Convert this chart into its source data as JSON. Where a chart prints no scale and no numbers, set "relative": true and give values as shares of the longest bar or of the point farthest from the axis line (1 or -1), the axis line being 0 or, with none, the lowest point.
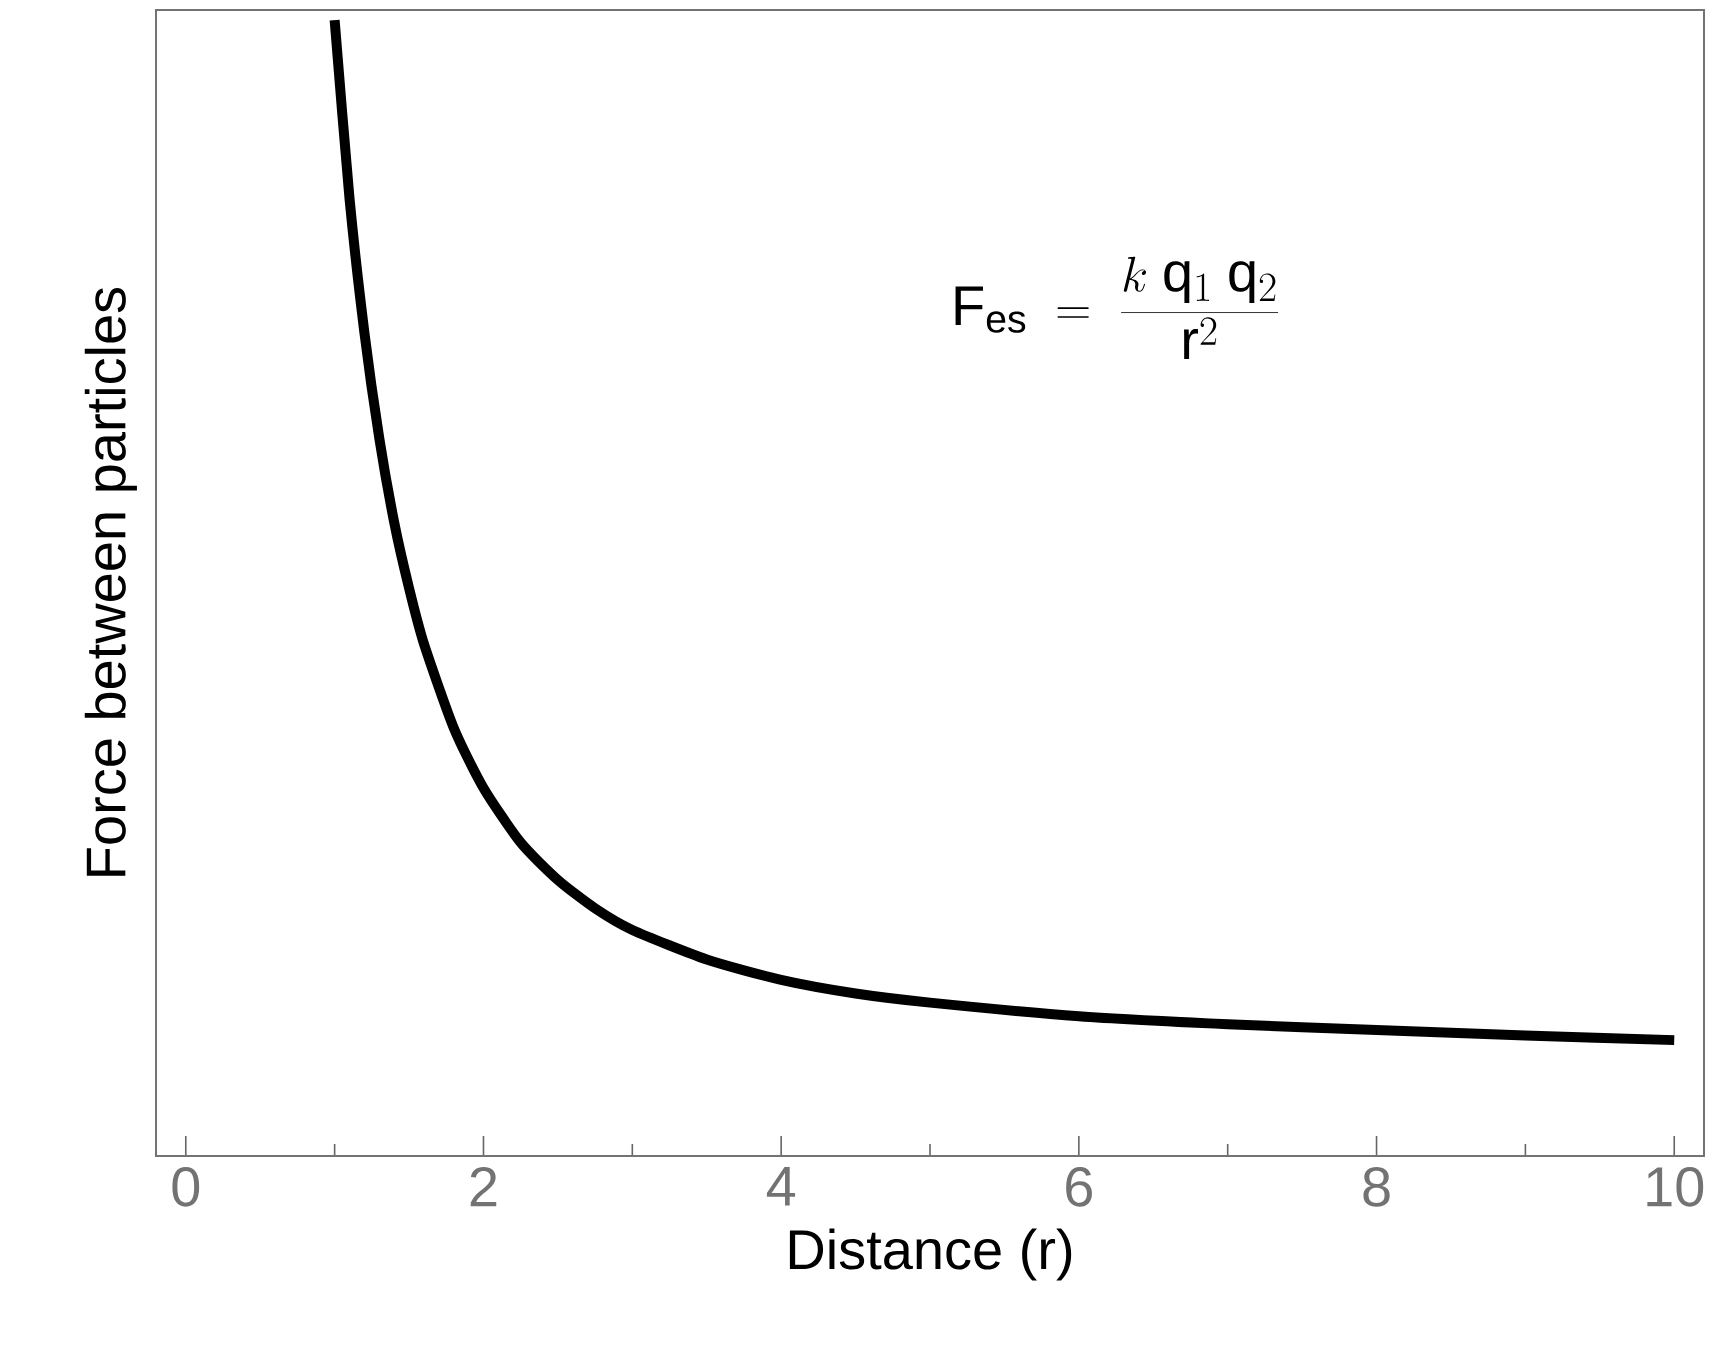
{
  "chart_data": {
    "type": "line",
    "relative": true,
    "xlabel": "Distance (r)",
    "ylabel": "Force between particles",
    "annotations": [
      "\\mathrm{F}_{\\mathrm{es}} \\;=\\; \\frac{k\\;\\mathrm{q}_1\\;\\mathrm{q}_2}{\\mathrm{r}^2}"
    ],
    "xlim": [
      -0.2,
      10.2
    ],
    "xticks": [
      0,
      2,
      4,
      6,
      8,
      10
    ],
    "grid": false,
    "marker": "none",
    "line_style": "solid",
    "series": [
      {
        "color": "#000000",
        "x": [
          1,
          1.1,
          1.2,
          1.3,
          1.4,
          1.5,
          1.6,
          1.8,
          2,
          2.25,
          2.5,
          2.75,
          3,
          3.5,
          4,
          4.5,
          5,
          6,
          7,
          8,
          9,
          10
        ],
        "values": [
          1,
          0.843,
          0.725,
          0.632,
          0.558,
          0.5,
          0.451,
          0.377,
          0.324,
          0.276,
          0.243,
          0.218,
          0.199,
          0.173,
          0.155,
          0.143,
          0.135,
          0.123,
          0.116,
          0.111,
          0.106,
          0.102
        ]
      }
    ]
  }
}
